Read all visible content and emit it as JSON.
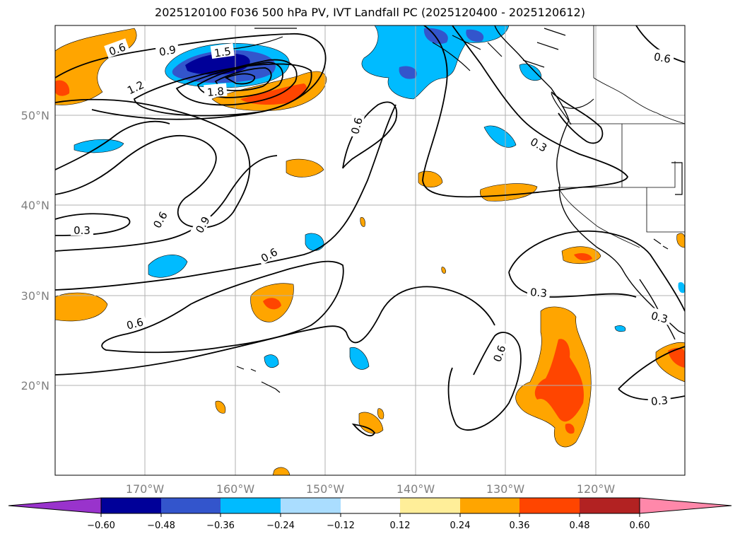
{
  "title": "2025120100 F036 500 hPa PV, IVT Landfall PC (2025120400 - 2025120612)",
  "longitude_labels": [
    "170°W",
    "160°W",
    "150°W",
    "140°W",
    "130°W",
    "120°W"
  ],
  "latitude_labels": [
    "50°N",
    "40°N",
    "30°N",
    "20°N"
  ],
  "colorbar": {
    "tick_labels": [
      "−0.60",
      "−0.48",
      "−0.36",
      "−0.24",
      "−0.12",
      "0.12",
      "0.24",
      "0.36",
      "0.48",
      "0.60"
    ],
    "colors": [
      "#9933cc",
      "#000099",
      "#3355cc",
      "#00bbff",
      "#aaddff",
      "#ffffff",
      "#ffee99",
      "#ffa500",
      "#ff4500",
      "#b22222",
      "#ff88aa"
    ]
  },
  "contour_labels": [
    {
      "id": "c1",
      "text": "0.6"
    },
    {
      "id": "c2",
      "text": "0.9"
    },
    {
      "id": "c3",
      "text": "1.5"
    },
    {
      "id": "c4",
      "text": "1.2"
    },
    {
      "id": "c5",
      "text": "1.8"
    },
    {
      "id": "c6",
      "text": "0.6"
    },
    {
      "id": "c7",
      "text": "0.3"
    },
    {
      "id": "c8",
      "text": "0.6"
    },
    {
      "id": "c9",
      "text": "0.3"
    },
    {
      "id": "c10",
      "text": "0.6"
    },
    {
      "id": "c11",
      "text": "0.9"
    },
    {
      "id": "c12",
      "text": "0.6"
    },
    {
      "id": "c13",
      "text": "0.6"
    },
    {
      "id": "c14",
      "text": "0.3"
    },
    {
      "id": "c15",
      "text": "0.6"
    },
    {
      "id": "c16",
      "text": "0.3"
    },
    {
      "id": "c17",
      "text": "0.3"
    }
  ]
}
